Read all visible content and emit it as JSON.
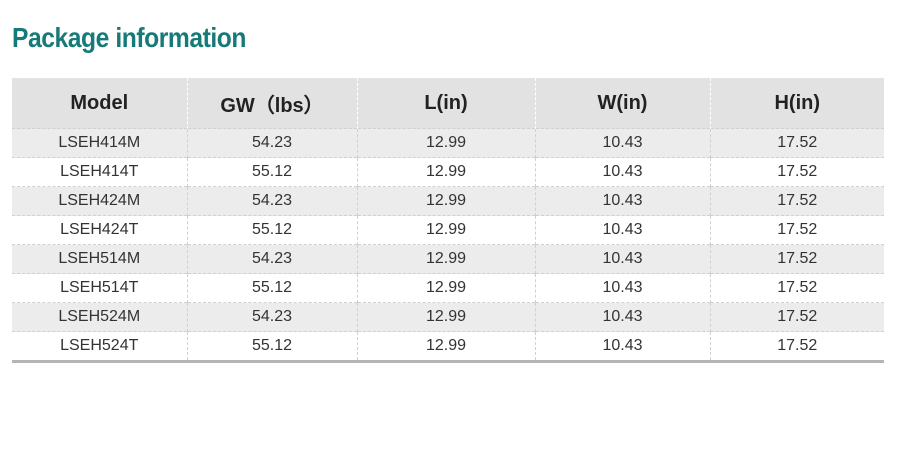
{
  "header": {
    "title": "Package information"
  },
  "table": {
    "columns": [
      "Model",
      "GW（lbs）",
      "L(in)",
      "W(in)",
      "H(in)"
    ],
    "rows": [
      [
        "LSEH414M",
        "54.23",
        "12.99",
        "10.43",
        "17.52"
      ],
      [
        "LSEH414T",
        "55.12",
        "12.99",
        "10.43",
        "17.52"
      ],
      [
        "LSEH424M",
        "54.23",
        "12.99",
        "10.43",
        "17.52"
      ],
      [
        "LSEH424T",
        "55.12",
        "12.99",
        "10.43",
        "17.52"
      ],
      [
        "LSEH514M",
        "54.23",
        "12.99",
        "10.43",
        "17.52"
      ],
      [
        "LSEH514T",
        "55.12",
        "12.99",
        "10.43",
        "17.52"
      ],
      [
        "LSEH524M",
        "54.23",
        "12.99",
        "10.43",
        "17.52"
      ],
      [
        "LSEH524T",
        "55.12",
        "12.99",
        "10.43",
        "17.52"
      ]
    ]
  }
}
